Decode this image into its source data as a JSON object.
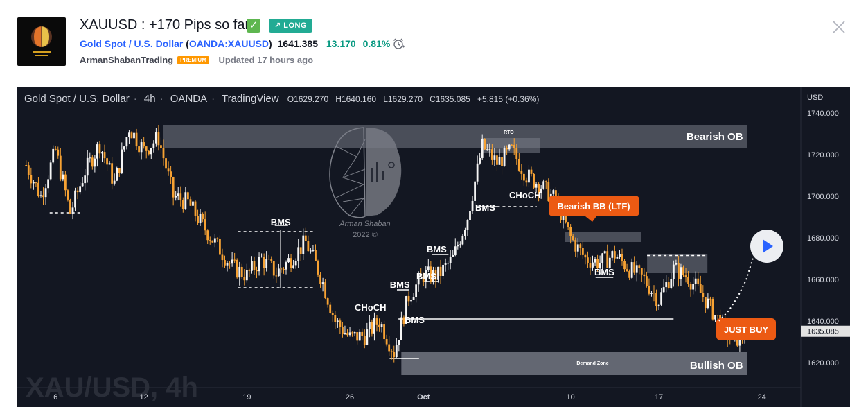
{
  "idea": {
    "title": "XAUUSD : +170 Pips so far",
    "direction_label": "LONG",
    "symbol_name": "Gold Spot / U.S. Dollar",
    "symbol_ticker": "OANDA:XAUUSD",
    "price": "1641.385",
    "change": "13.170",
    "change_pct": "0.81%",
    "author": "ArmanShabanTrading",
    "author_badge": "PREMIUM",
    "updated": "Updated 17 hours ago",
    "icons": {
      "check": "check-icon",
      "alarm": "alarm-clock-icon",
      "close": "close-icon",
      "direction": "arrow-up-right-icon"
    }
  },
  "chart_data": {
    "type": "candlestick",
    "title": "Gold Spot / U.S. Dollar",
    "interval": "4h",
    "exchange": "OANDA",
    "platform": "TradingView",
    "ohlc": {
      "o": "O1629.270",
      "h": "H1640.160",
      "l": "L1629.270",
      "c": "C1635.085",
      "change": "+5.815 (+0.36%)"
    },
    "currency": "USD",
    "ylim": [
      1608,
      1743
    ],
    "y_ticks": [
      1620,
      1640,
      1660,
      1680,
      1700,
      1720,
      1740
    ],
    "y_tick_labels": [
      "1620.000",
      "1640.000",
      "1660.000",
      "1680.000",
      "1700.000",
      "1720.000",
      "1740.000"
    ],
    "current_price_label": "1635.085",
    "current_price": 1635.085,
    "x_tick_labels": [
      "6",
      "12",
      "19",
      "26",
      "Oct",
      "10",
      "17",
      "24"
    ],
    "x_tick_days": [
      6,
      12,
      19,
      26,
      31,
      41,
      47,
      54
    ],
    "x_range_days": [
      3.4,
      56.6
    ],
    "watermark": "XAU/USD, 4h",
    "logo_text": [
      "Arman Shaban",
      "2022 ©"
    ],
    "up_color": "#f5f5f5",
    "down_color": "#f7a233",
    "path": [
      [
        4,
        1715
      ],
      [
        5,
        1700
      ],
      [
        6,
        1722
      ],
      [
        7,
        1692
      ],
      [
        8,
        1712
      ],
      [
        9,
        1725
      ],
      [
        10,
        1706
      ],
      [
        11,
        1733
      ],
      [
        12,
        1722
      ],
      [
        13,
        1728
      ],
      [
        14,
        1700
      ],
      [
        15,
        1697
      ],
      [
        16,
        1686
      ],
      [
        17,
        1676
      ],
      [
        18,
        1666
      ],
      [
        19,
        1662
      ],
      [
        20,
        1670
      ],
      [
        21,
        1663
      ],
      [
        22,
        1670
      ],
      [
        23,
        1678
      ],
      [
        24,
        1662
      ],
      [
        25,
        1640
      ],
      [
        26,
        1632
      ],
      [
        27,
        1633
      ],
      [
        28,
        1640
      ],
      [
        29,
        1625
      ],
      [
        30,
        1652
      ],
      [
        31,
        1662
      ],
      [
        32,
        1662
      ],
      [
        33,
        1670
      ],
      [
        34,
        1690
      ],
      [
        35,
        1724
      ],
      [
        36,
        1716
      ],
      [
        37,
        1722
      ],
      [
        38,
        1710
      ],
      [
        39,
        1705
      ],
      [
        40,
        1698
      ],
      [
        41,
        1680
      ],
      [
        42,
        1670
      ],
      [
        43,
        1668
      ],
      [
        44,
        1672
      ],
      [
        45,
        1665
      ],
      [
        46,
        1660
      ],
      [
        47,
        1650
      ],
      [
        48,
        1665
      ],
      [
        49,
        1661
      ],
      [
        50,
        1652
      ],
      [
        51,
        1641
      ],
      [
        52,
        1630
      ],
      [
        53,
        1635.085
      ]
    ],
    "zones": [
      {
        "label": "Bearish OB",
        "from_day": 13.3,
        "to_day": 53,
        "y1": 1734,
        "y2": 1723,
        "color": "#787b86"
      },
      {
        "label": "Bullish OB",
        "from_day": 29.5,
        "to_day": 53,
        "y1": 1625,
        "y2": 1614,
        "color": "#787b86"
      },
      {
        "label": "Demand Zone",
        "from_day": 29.5,
        "to_day": 53,
        "y1": 1625,
        "y2": 1614,
        "color": "#787b86"
      },
      {
        "label": "RTO",
        "from_day": 35,
        "to_day": 38.9,
        "y1": 1728,
        "y2": 1721,
        "color": "#787b86"
      },
      {
        "label": "",
        "from_day": 40.6,
        "to_day": 45.8,
        "y1": 1683,
        "y2": 1678,
        "color": "#787b86"
      },
      {
        "label": "",
        "from_day": 46.2,
        "to_day": 50.3,
        "y1": 1672,
        "y2": 1663,
        "color": "#787b86"
      }
    ],
    "annotations": [
      {
        "text": "BMS",
        "day": 21.3,
        "price": 1684
      },
      {
        "text": "CHoCH",
        "day": 27.4,
        "price": 1643
      },
      {
        "text": "BMS",
        "day": 29.4,
        "price": 1654
      },
      {
        "text": "BMS",
        "day": 31.2,
        "price": 1658
      },
      {
        "text": "BMS",
        "day": 31.9,
        "price": 1671
      },
      {
        "text": "BMS",
        "day": 35.2,
        "price": 1691
      },
      {
        "text": "CHoCH",
        "day": 37.9,
        "price": 1697
      },
      {
        "text": "BMS",
        "day": 43.3,
        "price": 1660
      },
      {
        "text": "BMS",
        "day": 30.4,
        "price": 1637
      }
    ],
    "callouts": [
      {
        "text": "Bearish BB (LTF)",
        "color": "#ec5a13"
      },
      {
        "text": "JUST BUY",
        "color": "#ec5a13"
      }
    ]
  }
}
